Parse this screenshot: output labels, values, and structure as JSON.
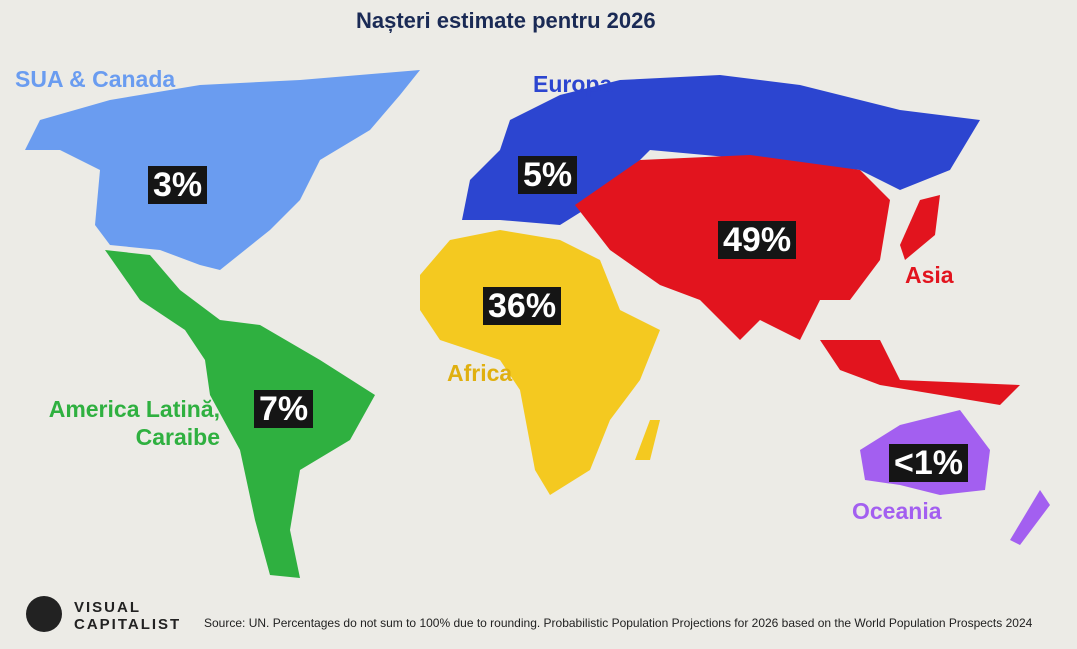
{
  "header": {
    "title": "Nașteri estimate pentru 2026"
  },
  "regions": [
    {
      "name": "SUA & Canada",
      "share": "3%"
    },
    {
      "name": "Europa",
      "share": "5%"
    },
    {
      "name": "Asia",
      "share": "49%"
    },
    {
      "name": "Africa",
      "share": "36%"
    },
    {
      "name": "America Latină, Caraibe",
      "share": "7%"
    },
    {
      "name": "Oceania",
      "share": "<1%"
    }
  ],
  "footer": {
    "logo_line1": "VISUAL",
    "logo_line2": "CAPITALIST",
    "source": "Source: UN. Percentages do not sum to 100% due to rounding. Probabilistic Population Projections for 2026 based on the World Population Prospects 2024"
  }
}
